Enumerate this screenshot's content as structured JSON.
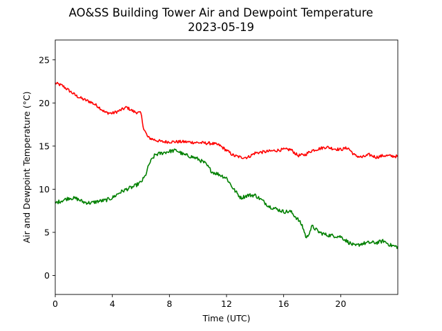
{
  "chart_data": {
    "type": "line",
    "title": "AO&SS Building Tower Air and Dewpoint Temperature",
    "subtitle": "2023-05-19",
    "xlabel": "Time (UTC)",
    "ylabel": "Air and Dewpoint Temperature (°C)",
    "xlim": [
      0,
      24
    ],
    "ylim": [
      -2.2,
      27.3
    ],
    "xticks": [
      0,
      4,
      8,
      12,
      16,
      20
    ],
    "yticks": [
      0,
      5,
      10,
      15,
      20,
      25
    ],
    "grid": false,
    "legend": "none",
    "series": [
      {
        "color": "#ff0000",
        "noise": 0.18,
        "x": [
          0,
          0.5,
          1,
          1.5,
          2,
          2.5,
          3,
          3.5,
          4,
          4.5,
          5,
          5.5,
          6,
          6.2,
          6.5,
          7,
          7.5,
          8,
          9,
          10,
          11,
          11.5,
          12,
          12.5,
          13,
          13.5,
          14,
          15,
          16,
          16.5,
          17,
          17.5,
          18,
          18.5,
          19,
          19.5,
          20,
          20.5,
          21,
          21.5,
          22,
          22.5,
          23,
          24
        ],
        "y": [
          22.3,
          22.0,
          21.4,
          20.8,
          20.4,
          20.1,
          19.6,
          18.9,
          18.8,
          19.1,
          19.5,
          19.0,
          18.8,
          17.0,
          16.0,
          15.7,
          15.5,
          15.5,
          15.5,
          15.4,
          15.3,
          15.1,
          14.5,
          13.9,
          13.7,
          13.7,
          14.2,
          14.4,
          14.6,
          14.6,
          13.9,
          14.0,
          14.5,
          14.7,
          14.9,
          14.7,
          14.6,
          14.8,
          13.9,
          13.7,
          14.0,
          13.7,
          13.9,
          13.8
        ]
      },
      {
        "color": "#008000",
        "noise": 0.22,
        "x": [
          0,
          0.5,
          1,
          1.5,
          2,
          2.5,
          3,
          3.5,
          4,
          4.5,
          5,
          5.5,
          6,
          6.3,
          6.6,
          7,
          7.5,
          8,
          8.5,
          9,
          9.5,
          10,
          10.5,
          11,
          11.5,
          12,
          12.5,
          13,
          13.5,
          14,
          14.5,
          15,
          15.5,
          16,
          16.5,
          17,
          17.3,
          17.6,
          18,
          18.5,
          19,
          19.5,
          20,
          20.5,
          21,
          21.5,
          22,
          22.5,
          23,
          23.5,
          24
        ],
        "y": [
          8.4,
          8.7,
          9.0,
          8.9,
          8.5,
          8.4,
          8.6,
          8.7,
          9.0,
          9.6,
          10.0,
          10.3,
          10.8,
          11.5,
          13.0,
          14.0,
          14.2,
          14.4,
          14.5,
          14.0,
          13.8,
          13.5,
          13.0,
          12.0,
          11.7,
          11.3,
          10.0,
          9.0,
          9.3,
          9.3,
          8.7,
          8.0,
          7.7,
          7.4,
          7.4,
          6.5,
          5.8,
          4.3,
          5.7,
          5.0,
          4.7,
          4.6,
          4.5,
          3.9,
          3.4,
          3.7,
          3.8,
          3.8,
          4.0,
          3.5,
          3.3
        ]
      }
    ]
  }
}
